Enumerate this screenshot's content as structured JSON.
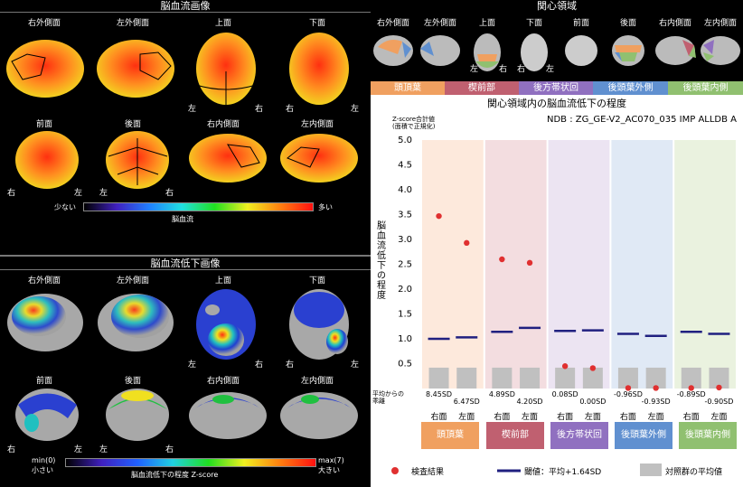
{
  "left_top": {
    "title": "脳血流画像",
    "views_row1": [
      "右外側面",
      "左外側面",
      "上面",
      "下面"
    ],
    "views_row2": [
      "前面",
      "後面",
      "右内側面",
      "左内側面"
    ],
    "scale_low": "少ない",
    "scale_high": "多い",
    "scale_caption": "脳血流"
  },
  "left_bottom": {
    "title": "脳血流低下画像",
    "views_row1": [
      "右外側面",
      "左外側面",
      "上面",
      "下面"
    ],
    "views_row2": [
      "前面",
      "後面",
      "右内側面",
      "左内側面"
    ],
    "scale_min": "min(0)",
    "scale_min_sub": "小さい",
    "scale_max": "max(7)",
    "scale_max_sub": "大きい",
    "scale_caption": "脳血流低下の程度  Z-score"
  },
  "sides": {
    "left": "左",
    "right": "右"
  },
  "roi": {
    "title": "関心領域",
    "views": [
      "右外側面",
      "左外側面",
      "上面",
      "下面",
      "前面",
      "後面",
      "右内側面",
      "左内側面"
    ],
    "regions": [
      {
        "label": "頭頂葉",
        "color": "#f0a060"
      },
      {
        "label": "楔前部",
        "color": "#c06070"
      },
      {
        "label": "後方帯状回",
        "color": "#9070c0"
      },
      {
        "label": "後頭葉外側",
        "color": "#6090d0"
      },
      {
        "label": "後頭葉内側",
        "color": "#90c070"
      }
    ]
  },
  "chart_title": "関心領域内の脳血流低下の程度",
  "ndb_label": "NDB : ZG_GE-V2_AC070_035 IMP ALLDB A",
  "zsum_label_line1": "Z-score合計値",
  "zsum_label_line2": "(面積で正規化)",
  "ylabel": "脳血流低下の程度",
  "deviation_label_line1": "平均からの",
  "deviation_label_line2": "乖離",
  "sd_values": [
    "8.45SD",
    "6.47SD",
    "4.89SD",
    "4.20SD",
    "0.08SD",
    "0.00SD",
    "-0.96SD",
    "-0.93SD",
    "-0.89SD",
    "-0.90SD"
  ],
  "hemi_labels": [
    "右面",
    "左面",
    "右面",
    "左面",
    "右面",
    "左面",
    "右面",
    "左面",
    "右面",
    "左面"
  ],
  "legend": {
    "result": "検査結果",
    "threshold": "閾値：平均+1.64SD",
    "control": "対照群の平均値"
  },
  "chart_data": {
    "type": "scatter",
    "ylim": [
      0,
      5.0
    ],
    "yticks": [
      0.5,
      1.0,
      1.5,
      2.0,
      2.5,
      3.0,
      3.5,
      4.0,
      4.5,
      5.0
    ],
    "categories": [
      "頭頂葉",
      "楔前部",
      "後方帯状回",
      "後頭葉外側",
      "後頭葉内側"
    ],
    "points": [
      {
        "region": "頭頂葉",
        "hemi": "右面",
        "result": 3.47,
        "threshold": 1.0,
        "control": 0.42
      },
      {
        "region": "頭頂葉",
        "hemi": "左面",
        "result": 2.93,
        "threshold": 1.03,
        "control": 0.42
      },
      {
        "region": "楔前部",
        "hemi": "右面",
        "result": 2.6,
        "threshold": 1.14,
        "control": 0.42
      },
      {
        "region": "楔前部",
        "hemi": "左面",
        "result": 2.53,
        "threshold": 1.22,
        "control": 0.42
      },
      {
        "region": "後方帯状回",
        "hemi": "右面",
        "result": 0.45,
        "threshold": 1.16,
        "control": 0.42
      },
      {
        "region": "後方帯状回",
        "hemi": "左面",
        "result": 0.41,
        "threshold": 1.17,
        "control": 0.42
      },
      {
        "region": "後頭葉外側",
        "hemi": "右面",
        "result": 0.01,
        "threshold": 1.1,
        "control": 0.42
      },
      {
        "region": "後頭葉外側",
        "hemi": "左面",
        "result": 0.01,
        "threshold": 1.06,
        "control": 0.42
      },
      {
        "region": "後頭葉内側",
        "hemi": "右面",
        "result": 0.01,
        "threshold": 1.14,
        "control": 0.42
      },
      {
        "region": "後頭葉内側",
        "hemi": "左面",
        "result": 0.02,
        "threshold": 1.1,
        "control": 0.42
      }
    ],
    "colors": {
      "result": "#e03030",
      "threshold": "#202080",
      "control": "#c0c0c0"
    }
  }
}
